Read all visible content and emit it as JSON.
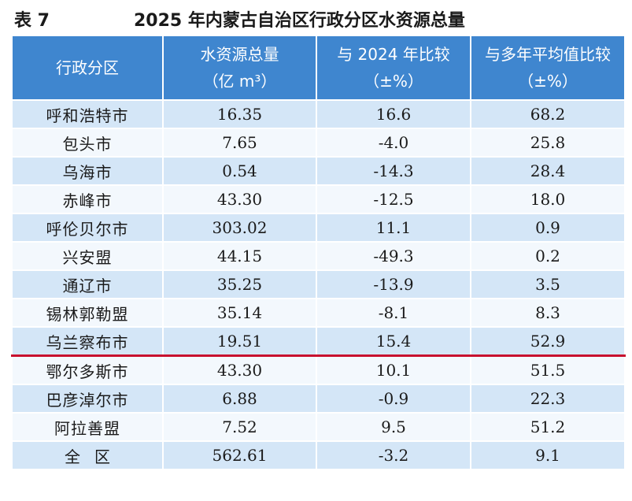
{
  "caption": {
    "table_no": "表 7",
    "title": "2025 年内蒙古自治区行政分区水资源总量"
  },
  "header": {
    "col1": "行政分区",
    "col2_line1": "水资源总量",
    "col2_line2": "（亿 m³）",
    "col3_line1": "与 2024 年比较",
    "col3_line2": "（±%）",
    "col4_line1": "与多年平均值比较",
    "col4_line2": "（±%）"
  },
  "rows": [
    {
      "region": "呼和浩特市",
      "total": "16.35",
      "vs2024": "16.6",
      "vsavg": "68.2"
    },
    {
      "region": "包头市",
      "total": "7.65",
      "vs2024": "-4.0",
      "vsavg": "25.8"
    },
    {
      "region": "乌海市",
      "total": "0.54",
      "vs2024": "-14.3",
      "vsavg": "28.4"
    },
    {
      "region": "赤峰市",
      "total": "43.30",
      "vs2024": "-12.5",
      "vsavg": "18.0"
    },
    {
      "region": "呼伦贝尔市",
      "total": "303.02",
      "vs2024": "11.1",
      "vsavg": "0.9"
    },
    {
      "region": "兴安盟",
      "total": "44.15",
      "vs2024": "-49.3",
      "vsavg": "0.2"
    },
    {
      "region": "通辽市",
      "total": "35.25",
      "vs2024": "-13.9",
      "vsavg": "3.5"
    },
    {
      "region": "锡林郭勒盟",
      "total": "35.14",
      "vs2024": "-8.1",
      "vsavg": "8.3"
    },
    {
      "region": "乌兰察布市",
      "total": "19.51",
      "vs2024": "15.4",
      "vsavg": "52.9"
    },
    {
      "region": "鄂尔多斯市",
      "total": "43.30",
      "vs2024": "10.1",
      "vsavg": "51.5"
    },
    {
      "region": "巴彦淖尔市",
      "total": "6.88",
      "vs2024": "-0.9",
      "vsavg": "22.3"
    },
    {
      "region": "阿拉善盟",
      "total": "7.52",
      "vs2024": "9.5",
      "vsavg": "51.2"
    },
    {
      "region": "全区",
      "total": "562.61",
      "vs2024": "-3.2",
      "vsavg": "9.1"
    }
  ],
  "colors": {
    "header_bg": "#3f86cf",
    "row_dark": "#d4e6f7",
    "row_light": "#f3f8fd",
    "divider": "#c8102e"
  }
}
